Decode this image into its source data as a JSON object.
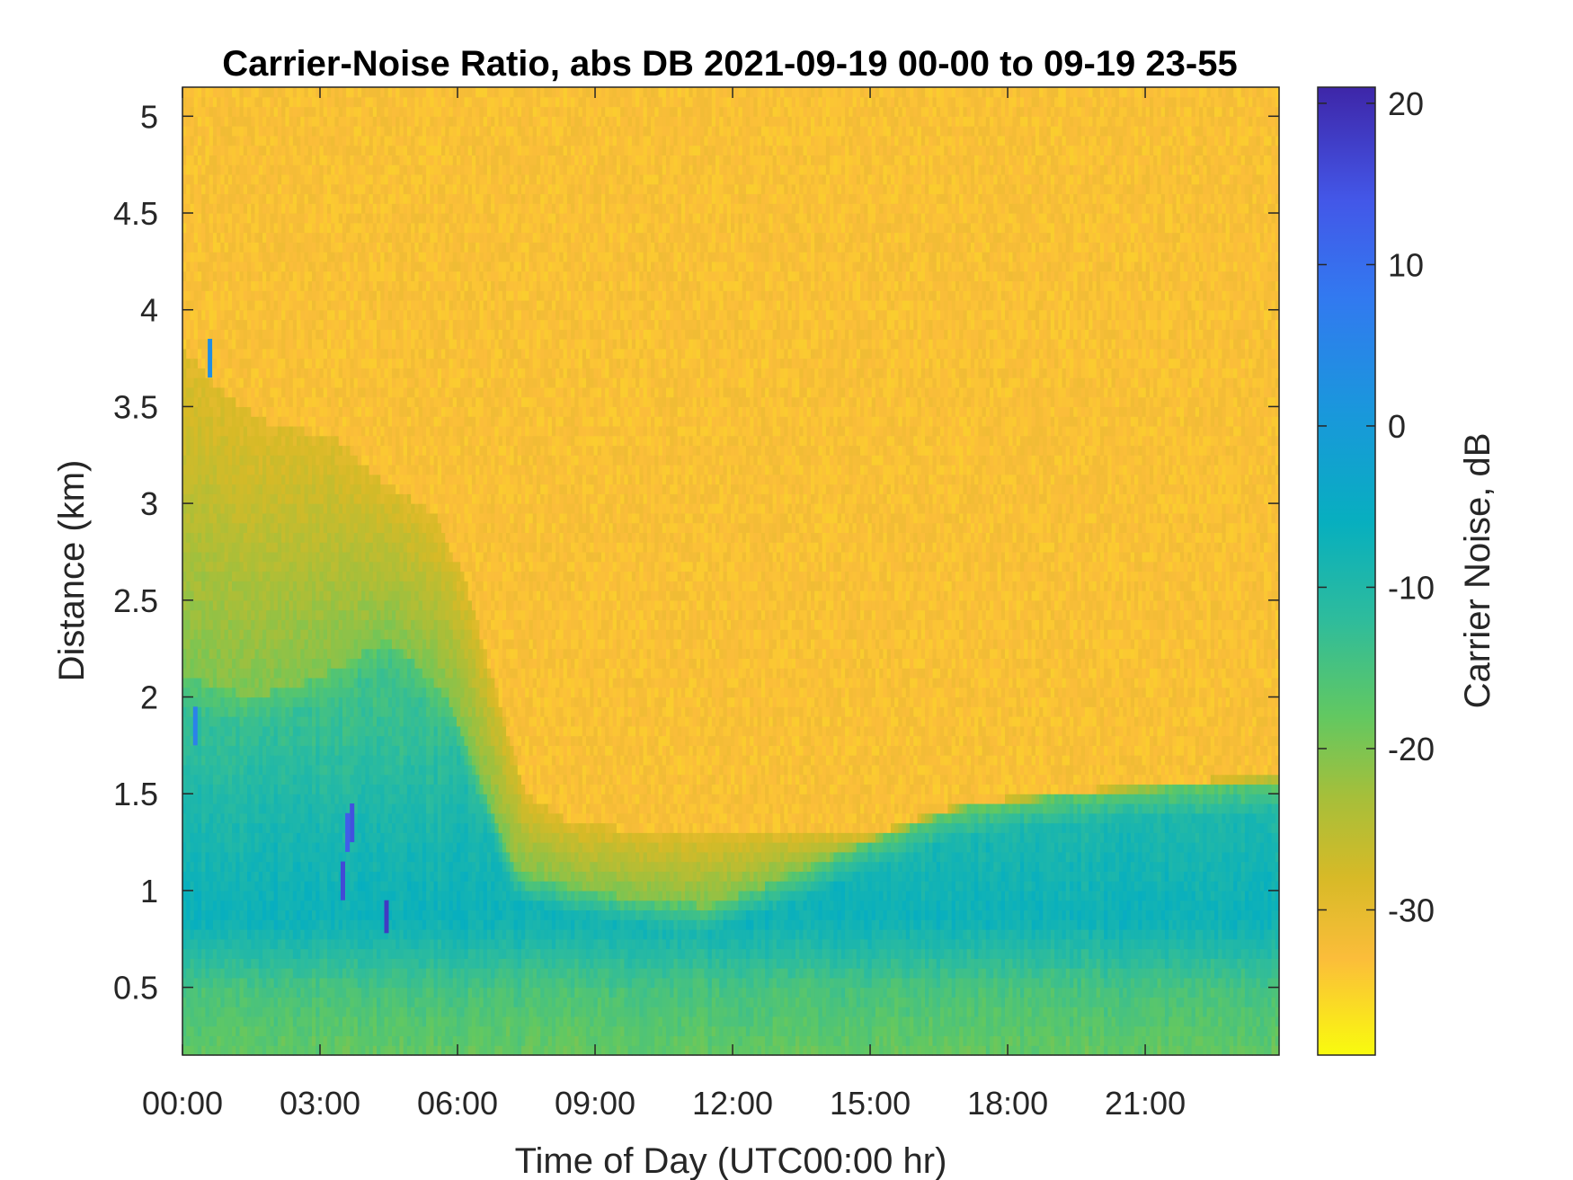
{
  "chart_data": {
    "type": "heatmap",
    "title": "Carrier-Noise Ratio, abs DB 2021-09-19 00-00 to 09-19 23-55",
    "xlabel": "Time of Day (UTC00:00 hr)",
    "ylabel": "Distance (km)",
    "colorbar_label": "Carrier Noise, dB",
    "x_range_hours": [
      0,
      24
    ],
    "xlim_hours": [
      0,
      23.92
    ],
    "x_ticks": [
      {
        "hour": 0,
        "label": "00:00"
      },
      {
        "hour": 3,
        "label": "03:00"
      },
      {
        "hour": 6,
        "label": "06:00"
      },
      {
        "hour": 9,
        "label": "09:00"
      },
      {
        "hour": 12,
        "label": "12:00"
      },
      {
        "hour": 15,
        "label": "15:00"
      },
      {
        "hour": 18,
        "label": "18:00"
      },
      {
        "hour": 21,
        "label": "21:00"
      }
    ],
    "ylim_km": [
      0.15,
      5.15
    ],
    "y_ticks": [
      {
        "value": 0.5,
        "label": "0.5"
      },
      {
        "value": 1,
        "label": "1"
      },
      {
        "value": 1.5,
        "label": "1.5"
      },
      {
        "value": 2,
        "label": "2"
      },
      {
        "value": 2.5,
        "label": "2.5"
      },
      {
        "value": 3,
        "label": "3"
      },
      {
        "value": 3.5,
        "label": "3.5"
      },
      {
        "value": 4,
        "label": "4"
      },
      {
        "value": 4.5,
        "label": "4.5"
      },
      {
        "value": 5,
        "label": "5"
      }
    ],
    "color_range_db": [
      -39,
      21
    ],
    "colorbar_ticks": [
      {
        "value": 20,
        "label": "20"
      },
      {
        "value": 10,
        "label": "10"
      },
      {
        "value": 0,
        "label": "0"
      },
      {
        "value": -10,
        "label": "-10"
      },
      {
        "value": -20,
        "label": "-20"
      },
      {
        "value": -30,
        "label": "-30"
      }
    ],
    "colormap": "parula-reversed",
    "colormap_stops": [
      {
        "value": -39,
        "color": "#f9fb0e"
      },
      {
        "value": -33,
        "color": "#fbbd3a"
      },
      {
        "value": -28,
        "color": "#d7ba27"
      },
      {
        "value": -23,
        "color": "#a6bf3a"
      },
      {
        "value": -18,
        "color": "#62c861"
      },
      {
        "value": -12,
        "color": "#2ebc9c"
      },
      {
        "value": -6,
        "color": "#07afbf"
      },
      {
        "value": 1,
        "color": "#1a97dc"
      },
      {
        "value": 8,
        "color": "#3279f0"
      },
      {
        "value": 14,
        "color": "#4357e8"
      },
      {
        "value": 21,
        "color": "#3e26a8"
      }
    ],
    "time_step_hours": 0.0833,
    "range_step_km": 0.05,
    "background_level_db": -33,
    "boundary_layer_top_km": [
      {
        "hour": 0,
        "km": 3.8
      },
      {
        "hour": 1,
        "km": 3.55
      },
      {
        "hour": 2,
        "km": 3.4
      },
      {
        "hour": 3.3,
        "km": 3.35
      },
      {
        "hour": 4.2,
        "km": 3.15
      },
      {
        "hour": 5.5,
        "km": 2.95
      },
      {
        "hour": 6.2,
        "km": 2.6
      },
      {
        "hour": 7.5,
        "km": 1.5
      },
      {
        "hour": 8.5,
        "km": 1.35
      },
      {
        "hour": 10.5,
        "km": 1.3
      },
      {
        "hour": 13,
        "km": 1.3
      },
      {
        "hour": 15,
        "km": 1.28
      },
      {
        "hour": 17,
        "km": 1.45
      },
      {
        "hour": 19,
        "km": 1.5
      },
      {
        "hour": 21,
        "km": 1.55
      },
      {
        "hour": 23.9,
        "km": 1.6
      }
    ],
    "mixed_layer_top_km": [
      {
        "hour": 0,
        "km": 2.1
      },
      {
        "hour": 1.5,
        "km": 2.0
      },
      {
        "hour": 3,
        "km": 2.1
      },
      {
        "hour": 4.5,
        "km": 2.3
      },
      {
        "hour": 5.8,
        "km": 2.0
      },
      {
        "hour": 7.3,
        "km": 1.1
      },
      {
        "hour": 8.5,
        "km": 1.02
      },
      {
        "hour": 10,
        "km": 0.95
      },
      {
        "hour": 11.5,
        "km": 0.92
      },
      {
        "hour": 13,
        "km": 1.05
      },
      {
        "hour": 15,
        "km": 1.25
      },
      {
        "hour": 17,
        "km": 1.42
      },
      {
        "hour": 19,
        "km": 1.48
      },
      {
        "hour": 21,
        "km": 1.52
      },
      {
        "hour": 23.9,
        "km": 1.55
      }
    ],
    "core_profile_db": [
      {
        "km": 0.15,
        "db": -18
      },
      {
        "km": 0.5,
        "db": -15
      },
      {
        "km": 0.85,
        "db": -7
      },
      {
        "km": 1.3,
        "db": -9
      },
      {
        "km": 2.0,
        "db": -14
      }
    ],
    "spikes": [
      {
        "hour": 0.6,
        "km_from": 3.65,
        "km_to": 3.85,
        "db": 3
      },
      {
        "hour": 0.28,
        "km_from": 1.75,
        "km_to": 1.95,
        "db": 6
      },
      {
        "hour": 3.5,
        "km_from": 0.95,
        "km_to": 1.15,
        "db": 16
      },
      {
        "hour": 3.6,
        "km_from": 1.2,
        "km_to": 1.4,
        "db": 13
      },
      {
        "hour": 3.7,
        "km_from": 1.25,
        "km_to": 1.45,
        "db": 15
      },
      {
        "hour": 4.45,
        "km_from": 0.78,
        "km_to": 0.95,
        "db": 18
      }
    ]
  }
}
